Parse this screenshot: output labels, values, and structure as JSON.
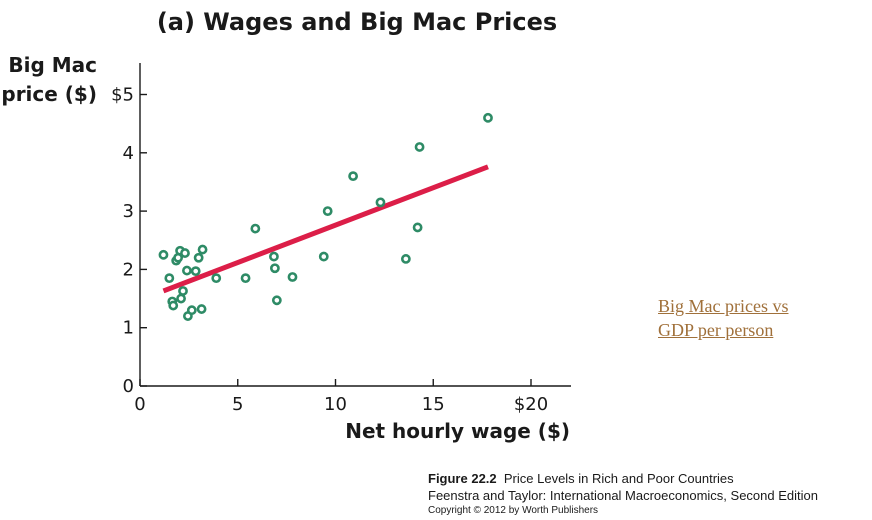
{
  "chart_data": {
    "type": "scatter",
    "title": "(a) Wages and Big Mac Prices",
    "ylabel_line1": "Big Mac",
    "ylabel_line2": "price ($)",
    "xlabel": "Net hourly wage ($)",
    "xlim": [
      0,
      22
    ],
    "ylim": [
      0,
      5.5
    ],
    "x_ticks": [
      0,
      5,
      10,
      15,
      20
    ],
    "x_tick_labels": [
      "0",
      "5",
      "10",
      "15",
      "$20"
    ],
    "y_ticks": [
      0,
      1,
      2,
      3,
      4,
      5
    ],
    "y_tick_labels": [
      "0",
      "1",
      "2",
      "3",
      "4",
      "$5"
    ],
    "grid": false,
    "points": [
      {
        "x": 1.2,
        "y": 2.25
      },
      {
        "x": 1.5,
        "y": 1.85
      },
      {
        "x": 1.65,
        "y": 1.45
      },
      {
        "x": 1.7,
        "y": 1.38
      },
      {
        "x": 1.85,
        "y": 2.15
      },
      {
        "x": 1.95,
        "y": 2.2
      },
      {
        "x": 2.05,
        "y": 2.32
      },
      {
        "x": 2.1,
        "y": 1.5
      },
      {
        "x": 2.2,
        "y": 1.63
      },
      {
        "x": 2.3,
        "y": 2.28
      },
      {
        "x": 2.4,
        "y": 1.98
      },
      {
        "x": 2.45,
        "y": 1.2
      },
      {
        "x": 2.65,
        "y": 1.3
      },
      {
        "x": 2.85,
        "y": 1.97
      },
      {
        "x": 3.0,
        "y": 2.2
      },
      {
        "x": 3.15,
        "y": 1.32
      },
      {
        "x": 3.2,
        "y": 2.34
      },
      {
        "x": 3.9,
        "y": 1.85
      },
      {
        "x": 5.4,
        "y": 1.85
      },
      {
        "x": 5.9,
        "y": 2.7
      },
      {
        "x": 6.85,
        "y": 2.22
      },
      {
        "x": 6.9,
        "y": 2.02
      },
      {
        "x": 7.0,
        "y": 1.47
      },
      {
        "x": 7.8,
        "y": 1.87
      },
      {
        "x": 9.4,
        "y": 2.22
      },
      {
        "x": 9.6,
        "y": 3.0
      },
      {
        "x": 10.9,
        "y": 3.6
      },
      {
        "x": 12.3,
        "y": 3.15
      },
      {
        "x": 13.6,
        "y": 2.18
      },
      {
        "x": 14.2,
        "y": 2.72
      },
      {
        "x": 14.3,
        "y": 4.1
      },
      {
        "x": 17.8,
        "y": 4.6
      }
    ],
    "trend_line": {
      "x": [
        1.2,
        17.8
      ],
      "y": [
        1.63,
        3.76
      ]
    }
  },
  "colors": {
    "points": "#2e8b66",
    "trend": "#dc1e48",
    "link": "#a0703a"
  },
  "link": {
    "line1": "Big Mac prices vs",
    "line2": "GDP per person"
  },
  "caption": {
    "figure_number": "Figure 22.2",
    "figure_title": "Price Levels in Rich and Poor Countries",
    "source": "Feenstra and Taylor: International Macroeconomics, Second Edition",
    "copyright": "Copyright © 2012 by Worth Publishers"
  }
}
